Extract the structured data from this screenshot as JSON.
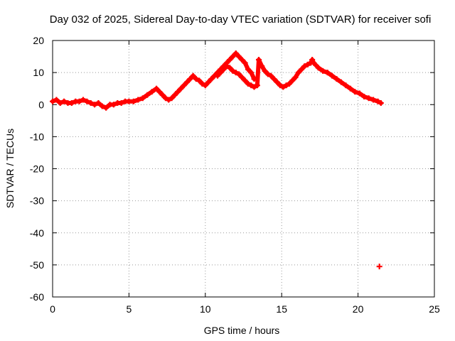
{
  "chart_data": {
    "type": "scatter",
    "title": "Day 032 of 2025, Sidereal Day-to-day VTEC variation (SDTVAR) for receiver sofi",
    "xlabel": "GPS time / hours",
    "ylabel": "SDTVAR / TECUs",
    "xlim": [
      0,
      25
    ],
    "ylim": [
      -60,
      20
    ],
    "xticks": [
      0,
      5,
      10,
      15,
      20,
      25
    ],
    "yticks": [
      -60,
      -50,
      -40,
      -30,
      -20,
      -10,
      0,
      10,
      20
    ],
    "grid": true,
    "marker": "plus",
    "series": [
      {
        "name": "SDTVAR",
        "color": "#ff0000",
        "x": [
          0.0,
          0.25,
          0.5,
          0.75,
          1.0,
          1.25,
          1.5,
          1.75,
          2.0,
          2.25,
          2.5,
          2.75,
          3.0,
          3.25,
          3.5,
          3.75,
          4.0,
          4.25,
          4.5,
          4.75,
          5.0,
          5.3,
          5.6,
          5.9,
          6.2,
          6.5,
          6.8,
          7.0,
          7.2,
          7.4,
          7.6,
          7.8,
          8.0,
          8.2,
          8.4,
          8.6,
          8.8,
          9.0,
          9.2,
          9.4,
          9.6,
          9.8,
          10.0,
          10.2,
          10.4,
          10.6,
          10.8,
          11.0,
          11.2,
          11.4,
          11.6,
          11.8,
          12.0,
          12.2,
          12.4,
          12.6,
          12.8,
          13.0,
          13.2,
          10.8,
          11.0,
          11.2,
          11.4,
          11.6,
          11.8,
          12.0,
          12.2,
          12.4,
          12.6,
          12.8,
          13.0,
          13.2,
          13.4,
          13.5,
          13.7,
          13.9,
          14.1,
          14.3,
          14.5,
          14.7,
          14.9,
          15.1,
          15.3,
          15.5,
          15.7,
          15.9,
          16.1,
          16.3,
          16.5,
          16.7,
          16.9,
          17.0,
          17.1,
          17.4,
          17.7,
          18.0,
          18.3,
          18.6,
          18.9,
          19.2,
          19.5,
          19.8,
          20.1,
          20.4,
          20.7,
          21.0,
          21.3,
          21.5,
          21.4
        ],
        "y": [
          1,
          1.5,
          0.5,
          1,
          0.5,
          0.5,
          1,
          1,
          1.5,
          1,
          0.5,
          0,
          0.5,
          -0.5,
          -1,
          0,
          0,
          0.5,
          0.5,
          1,
          1,
          1,
          1.5,
          2,
          3,
          4,
          5,
          4,
          3,
          2,
          1.5,
          2,
          3,
          4,
          5,
          6,
          7,
          8,
          9,
          8,
          7.5,
          6.5,
          6,
          7,
          8,
          9,
          10,
          11,
          12,
          13,
          14,
          15,
          16,
          15,
          14,
          13,
          11,
          10,
          8,
          9,
          10,
          11,
          12,
          11.5,
          10.5,
          10,
          9.5,
          8.5,
          7.5,
          6.5,
          6,
          5.5,
          6,
          14,
          12,
          10.5,
          9.5,
          9,
          8,
          7,
          6,
          5.5,
          6,
          6.5,
          7.5,
          8.5,
          10,
          11,
          12,
          12.5,
          13,
          14,
          13,
          11.5,
          10.5,
          10,
          9,
          8,
          7,
          6,
          5,
          4,
          3.5,
          2.5,
          2,
          1.5,
          1,
          0.5,
          -50.5
        ]
      }
    ]
  }
}
